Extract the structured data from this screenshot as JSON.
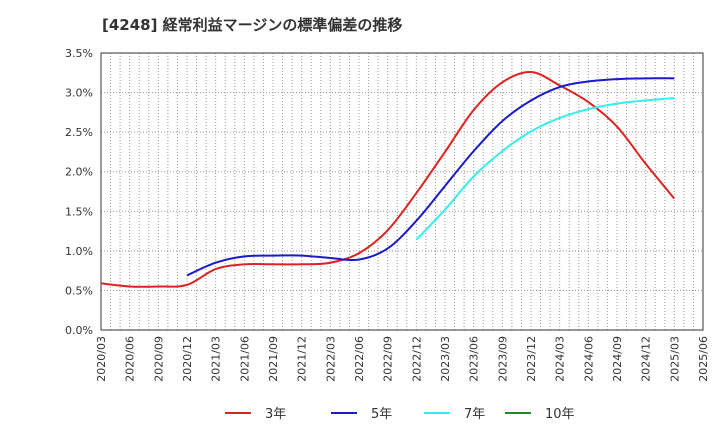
{
  "chart_data": {
    "type": "line",
    "title": "[4248]  経常利益マージンの標準偏差の推移",
    "xlabel": "",
    "ylabel": "",
    "ylim": [
      0,
      3.5
    ],
    "y_ticks": [
      "0.0%",
      "0.5%",
      "1.0%",
      "1.5%",
      "2.0%",
      "2.5%",
      "3.0%",
      "3.5%"
    ],
    "x_ticks": [
      "2020/03",
      "2020/06",
      "2020/09",
      "2020/12",
      "2021/03",
      "2021/06",
      "2021/09",
      "2021/12",
      "2022/03",
      "2022/06",
      "2022/09",
      "2022/12",
      "2023/03",
      "2023/06",
      "2023/09",
      "2023/12",
      "2024/03",
      "2024/06",
      "2024/09",
      "2024/12",
      "2025/03",
      "2025/06"
    ],
    "grid": true,
    "legend_position": "bottom",
    "series": [
      {
        "name": "3年",
        "color": "#dd2222",
        "x": [
          "2020/03",
          "2020/06",
          "2020/09",
          "2020/12",
          "2021/03",
          "2021/06",
          "2021/09",
          "2021/12",
          "2022/03",
          "2022/06",
          "2022/09",
          "2022/12",
          "2023/03",
          "2023/06",
          "2023/09",
          "2023/12",
          "2024/03",
          "2024/06",
          "2024/09",
          "2024/12",
          "2025/03"
        ],
        "values": [
          0.59,
          0.55,
          0.55,
          0.57,
          0.77,
          0.83,
          0.83,
          0.83,
          0.85,
          0.97,
          1.26,
          1.73,
          2.25,
          2.78,
          3.13,
          3.26,
          3.09,
          2.88,
          2.57,
          2.1,
          1.66
        ]
      },
      {
        "name": "5年",
        "color": "#1a1acc",
        "x": [
          "2020/12",
          "2021/03",
          "2021/06",
          "2021/09",
          "2021/12",
          "2022/03",
          "2022/06",
          "2022/09",
          "2022/12",
          "2023/03",
          "2023/06",
          "2023/09",
          "2023/12",
          "2024/03",
          "2024/06",
          "2024/09",
          "2024/12",
          "2025/03"
        ],
        "values": [
          0.69,
          0.85,
          0.93,
          0.94,
          0.94,
          0.91,
          0.89,
          1.03,
          1.38,
          1.82,
          2.26,
          2.64,
          2.9,
          3.07,
          3.14,
          3.17,
          3.18,
          3.18
        ]
      },
      {
        "name": "7年",
        "color": "#33eeee",
        "x": [
          "2022/12",
          "2023/03",
          "2023/06",
          "2023/09",
          "2023/12",
          "2024/03",
          "2024/06",
          "2024/09",
          "2024/12",
          "2025/03"
        ],
        "values": [
          1.14,
          1.52,
          1.94,
          2.26,
          2.51,
          2.68,
          2.79,
          2.86,
          2.9,
          2.93
        ]
      },
      {
        "name": "10年",
        "color": "#228822",
        "x": [],
        "values": []
      }
    ]
  }
}
